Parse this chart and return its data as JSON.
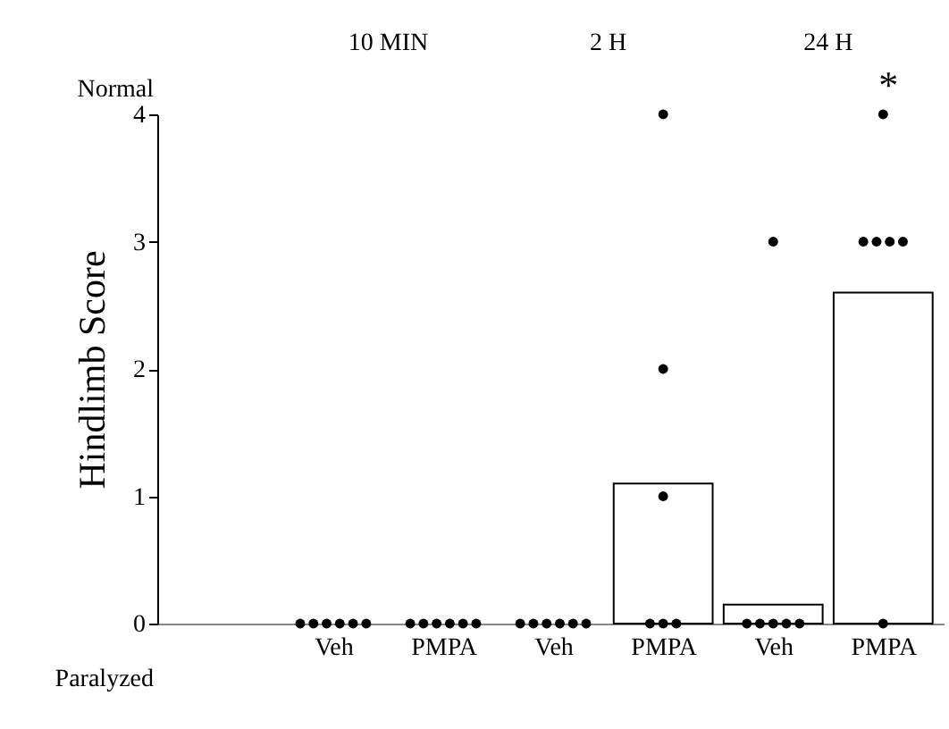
{
  "chart_data": {
    "type": "bar",
    "ylabel": "Hindlimb Score",
    "categories": [
      "Veh",
      "PMPA",
      "Veh",
      "PMPA",
      "Veh",
      "PMPA"
    ],
    "series": [
      {
        "color": "#ffffff",
        "values": [
          0,
          0,
          0,
          1.1,
          0.15,
          2.6
        ]
      },
      {
        "type": "scatter",
        "color": "#000000",
        "values": [
          0,
          0,
          0,
          4,
          3,
          4
        ]
      },
      {
        "type": "scatter",
        "color": "#000000",
        "values": [
          0,
          0,
          0,
          2,
          0,
          3
        ]
      },
      {
        "type": "scatter",
        "color": "#000000",
        "values": [
          0,
          0,
          0,
          1,
          0,
          3
        ]
      },
      {
        "type": "scatter",
        "color": "#000000",
        "values": [
          0,
          0,
          0,
          0,
          0,
          3
        ]
      },
      {
        "type": "scatter",
        "color": "#000000",
        "values": [
          0,
          0,
          0,
          0,
          0,
          3
        ]
      },
      {
        "type": "scatter",
        "color": "#000000",
        "values": [
          0,
          0,
          0,
          0,
          0,
          0
        ]
      }
    ],
    "ylim": [
      0,
      4
    ],
    "yticks": [
      0,
      1,
      2,
      3,
      4
    ],
    "marker": "circle",
    "annotations": [
      "10 MIN",
      "2 H",
      "24 H",
      "*",
      "Normal",
      "Paralyzed"
    ]
  }
}
